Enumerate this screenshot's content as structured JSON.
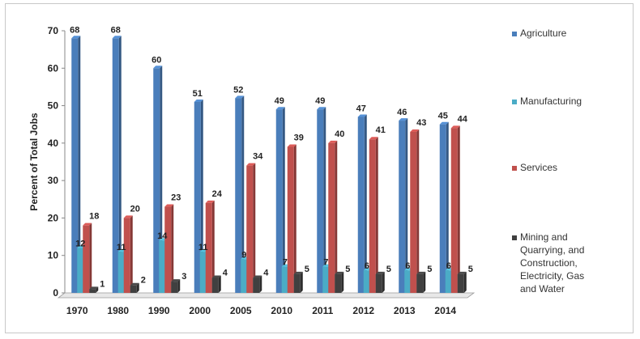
{
  "chart_data": {
    "type": "bar",
    "title": "",
    "xlabel": "",
    "ylabel": "Percent of Total Jobs",
    "ylim": [
      0,
      70
    ],
    "yticks": [
      0,
      10,
      20,
      30,
      40,
      50,
      60,
      70
    ],
    "grid": false,
    "legend_position": "right",
    "categories": [
      "1970",
      "1980",
      "1990",
      "2000",
      "2005",
      "2010",
      "2011",
      "2012",
      "2013",
      "2014"
    ],
    "series": [
      {
        "name": "Agriculture",
        "color": "#4a7ebb",
        "values": [
          68,
          68,
          60,
          51,
          52,
          49,
          49,
          47,
          46,
          45
        ]
      },
      {
        "name": "Manufacturing",
        "color": "#4bacc6",
        "values": [
          12,
          11,
          14,
          11,
          9,
          7,
          7,
          6,
          6,
          6
        ]
      },
      {
        "name": "Services",
        "color": "#c0504d",
        "values": [
          18,
          20,
          23,
          24,
          34,
          39,
          40,
          41,
          43,
          44
        ]
      },
      {
        "name": "Mining and Quarrying, and Construction, Electricity, Gas and Water",
        "color": "#404040",
        "values": [
          1,
          2,
          3,
          4,
          4,
          5,
          5,
          5,
          5,
          5
        ]
      }
    ]
  }
}
